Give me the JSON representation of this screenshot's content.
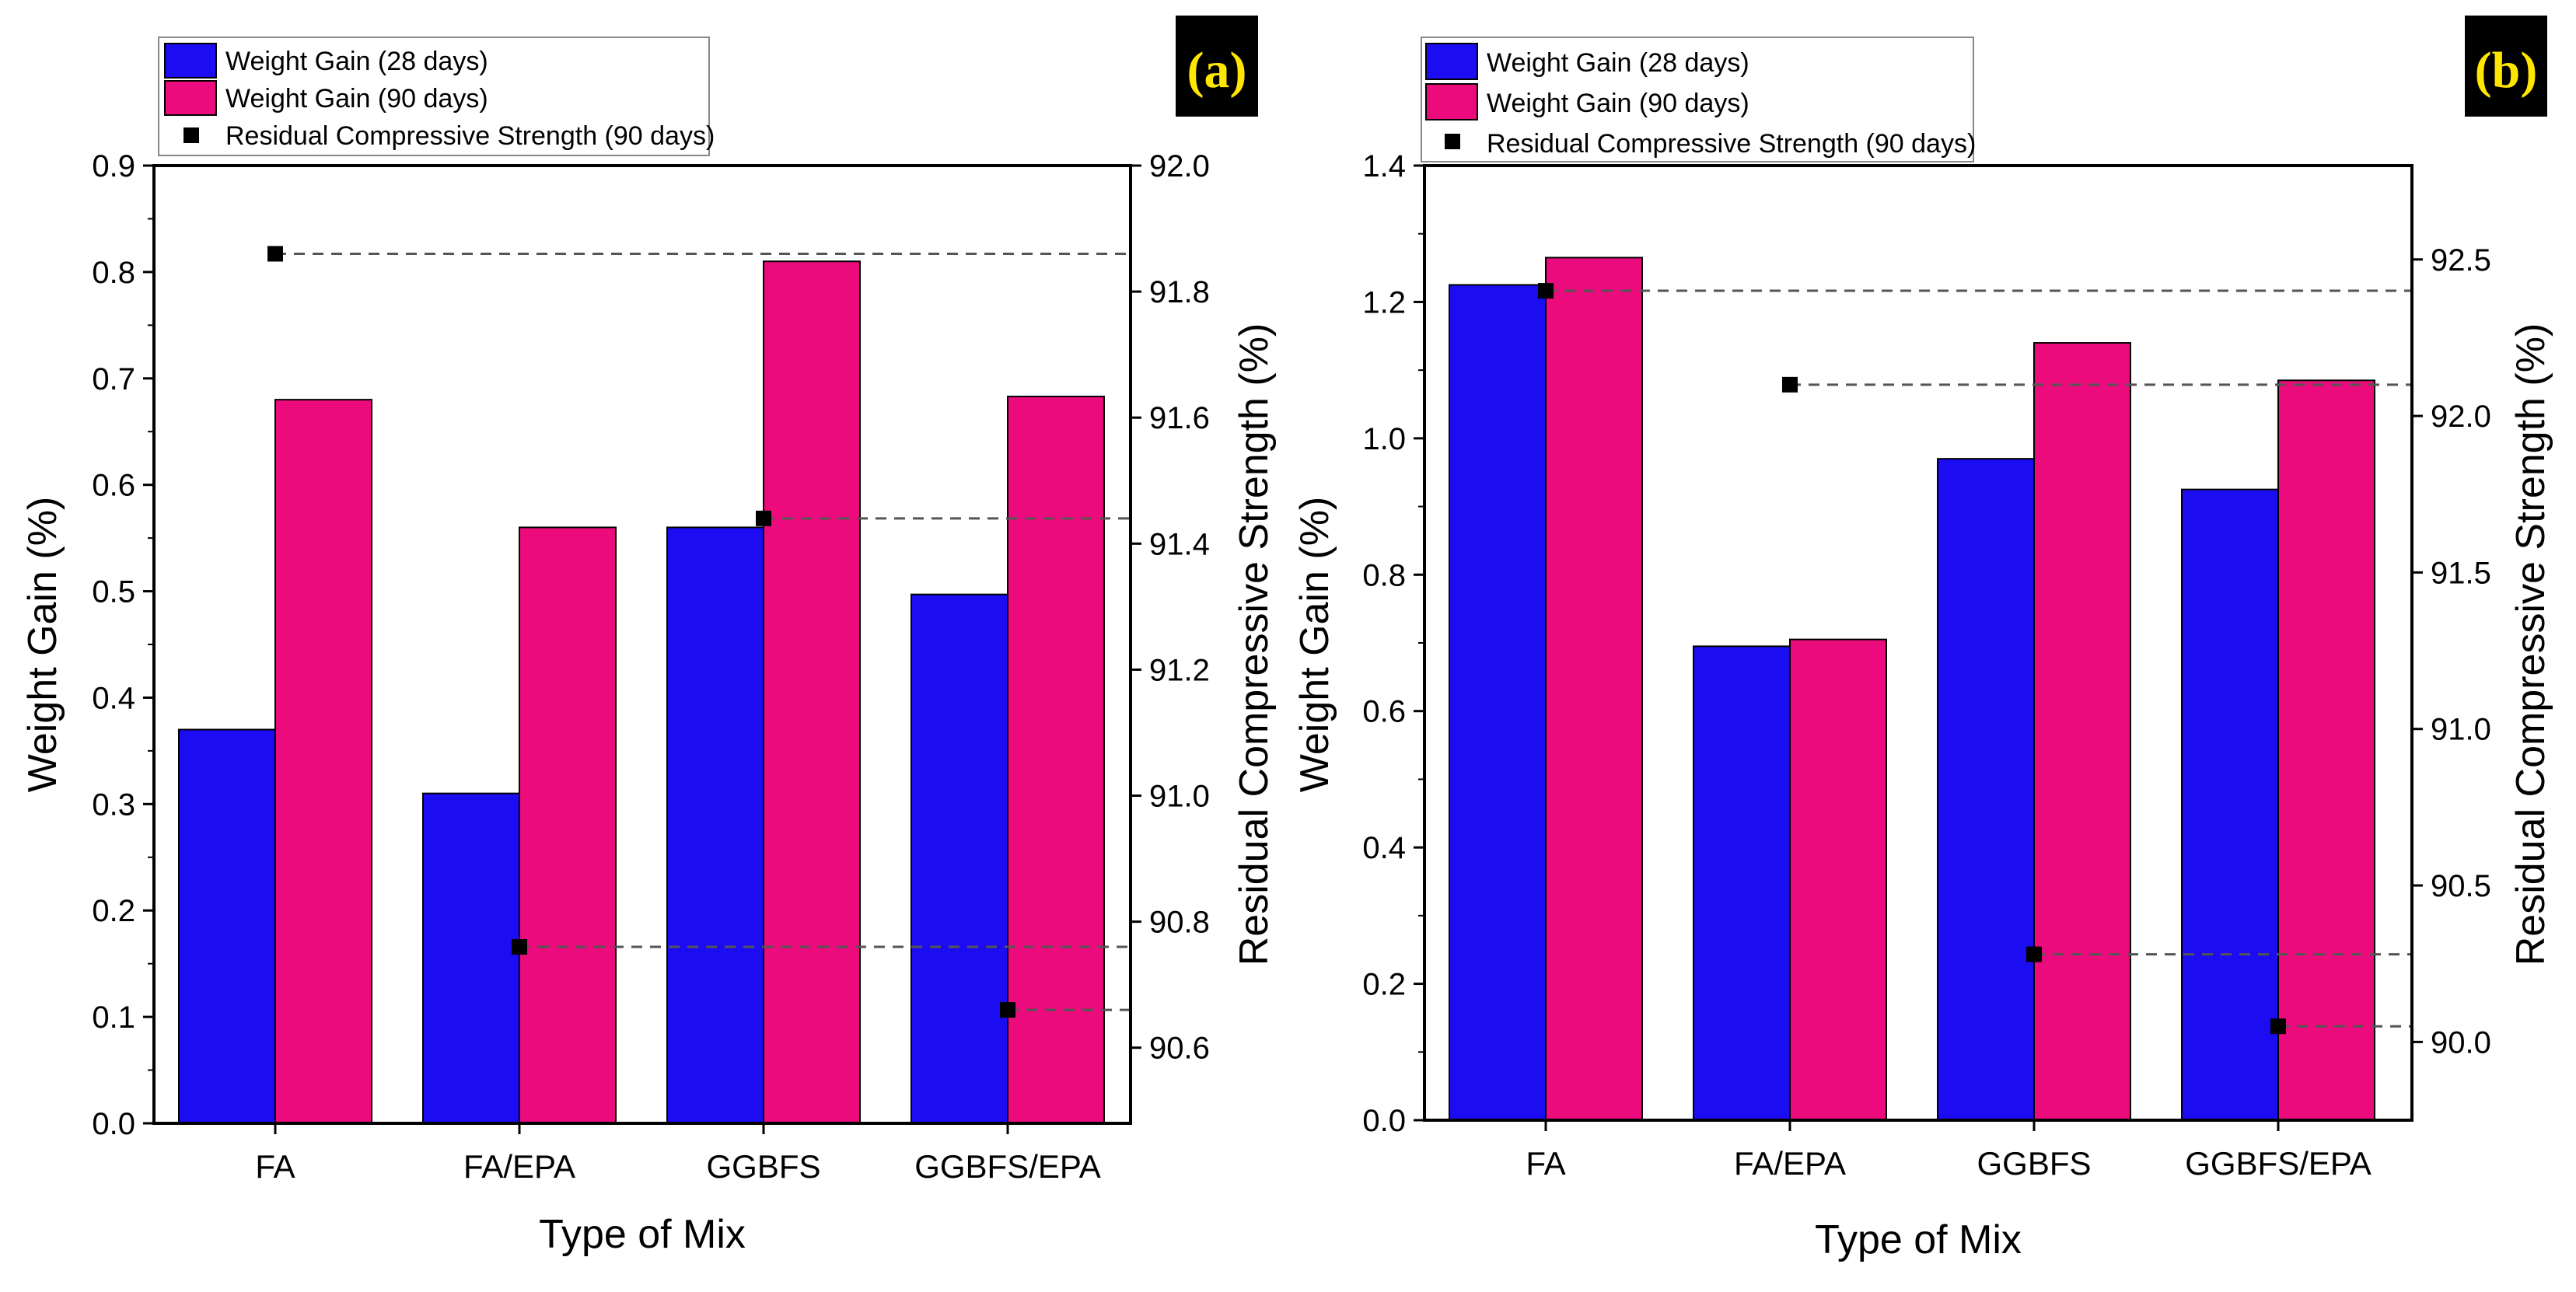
{
  "colors": {
    "weight_28": "#1c0cf2",
    "weight_90": "#ec0b7c",
    "residual": "#000000",
    "panel_label_bg": "#000000",
    "panel_label_text": "#ffe600"
  },
  "chart_data": [
    {
      "type": "bar",
      "panel_label": "(a)",
      "categories": [
        "FA",
        "FA/EPA",
        "GGBFS",
        "GGBFS/EPA"
      ],
      "xlabel": "Type of Mix",
      "ylabel": "Weight Gain (%)",
      "y2label": "Residual Compressive Strength (%)",
      "ylim": [
        0,
        0.9
      ],
      "yticks": [
        "0.0",
        "0.1",
        "0.2",
        "0.3",
        "0.4",
        "0.5",
        "0.6",
        "0.7",
        "0.8",
        "0.9"
      ],
      "y2lim": [
        90.48,
        92.0
      ],
      "y2ticks": [
        "90.6",
        "90.8",
        "91.0",
        "91.2",
        "91.4",
        "91.6",
        "91.8",
        "92.0"
      ],
      "series": [
        {
          "name": "Weight Gain (28 days)",
          "values": [
            0.37,
            0.31,
            0.56,
            0.497
          ]
        },
        {
          "name": "Weight Gain (90 days)",
          "values": [
            0.68,
            0.56,
            0.81,
            0.683
          ]
        }
      ],
      "line_series": {
        "name": "Residual Compressive Strength (90 days)",
        "axis": "right",
        "values": [
          91.86,
          90.76,
          91.44,
          90.66
        ]
      }
    },
    {
      "type": "bar",
      "panel_label": "(b)",
      "categories": [
        "FA",
        "FA/EPA",
        "GGBFS",
        "GGBFS/EPA"
      ],
      "xlabel": "Type of Mix",
      "ylabel": "Weight Gain (%)",
      "y2label": "Residual Compressive Strength (%)",
      "ylim": [
        0,
        1.4
      ],
      "yticks": [
        "0.0",
        "0.2",
        "0.4",
        "0.6",
        "0.8",
        "1.0",
        "1.2",
        "1.4"
      ],
      "y2lim": [
        89.75,
        92.8
      ],
      "y2ticks": [
        "90.0",
        "90.5",
        "91.0",
        "91.5",
        "92.0",
        "92.5"
      ],
      "series": [
        {
          "name": "Weight Gain (28 days)",
          "values": [
            1.225,
            0.695,
            0.97,
            0.925
          ]
        },
        {
          "name": "Weight Gain (90 days)",
          "values": [
            1.265,
            0.705,
            1.14,
            1.085
          ]
        }
      ],
      "line_series": {
        "name": "Residual Compressive Strength (90 days)",
        "axis": "right",
        "values": [
          92.4,
          92.1,
          90.28,
          90.05
        ]
      }
    }
  ]
}
